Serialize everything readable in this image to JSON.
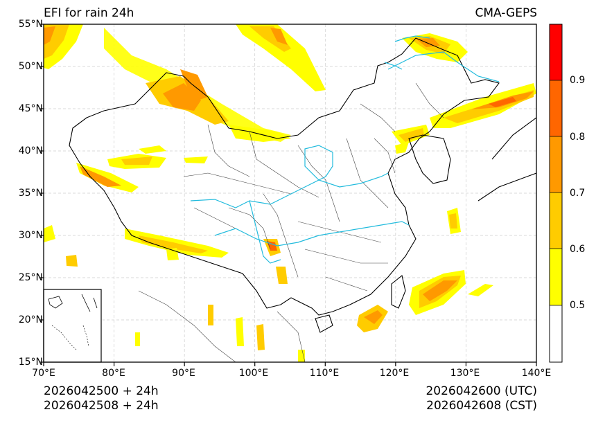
{
  "title_left": "EFI for rain 24h",
  "title_right": "CMA-GEPS",
  "lat_labels": [
    "55°N",
    "50°N",
    "45°N",
    "40°N",
    "35°N",
    "30°N",
    "25°N",
    "20°N",
    "15°N"
  ],
  "lon_labels": [
    "70°E",
    "80°E",
    "90°E",
    "100°E",
    "110°E",
    "120°E",
    "130°E",
    "140°E"
  ],
  "colorbar": {
    "levels": [
      0.5,
      0.6,
      0.7,
      0.8,
      0.9
    ],
    "labels": [
      "0.5",
      "0.6",
      "0.7",
      "0.8",
      "0.9"
    ],
    "colors": [
      "#ffffff",
      "#ffff00",
      "#ffcc00",
      "#ff9900",
      "#ff6600",
      "#ff0000"
    ]
  },
  "footer": {
    "init_utc": "2026042500 + 24h",
    "init_cst": "2026042508 + 24h",
    "valid_utc": "2026042600 (UTC)",
    "valid_cst": "2026042608 (CST)"
  },
  "map": {
    "lon_range": [
      70,
      140
    ],
    "lat_range": [
      15,
      55
    ],
    "river_color": "#22bbdd"
  }
}
